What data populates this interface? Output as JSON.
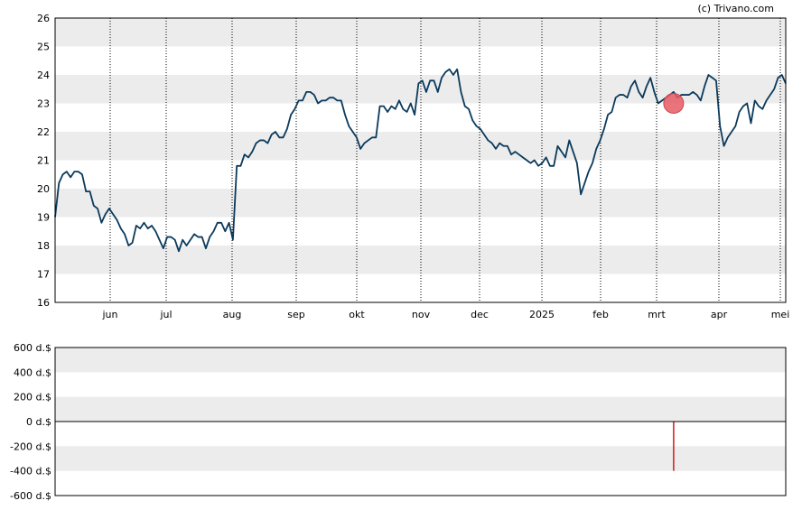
{
  "credit": "(c) Trivano.com",
  "colors": {
    "line": "#0b3a5c",
    "band": "#ececec",
    "marker": "#e85a64",
    "transaction": "#d62728",
    "axis": "#000000",
    "gridline": "#000000"
  },
  "chart_data": [
    {
      "type": "line",
      "title": "",
      "ylim": [
        16,
        26
      ],
      "y_ticks": [
        "16",
        "17",
        "18",
        "19",
        "20",
        "21",
        "22",
        "23",
        "24",
        "25",
        "26"
      ],
      "x_tick_labels": [
        "jun",
        "jul",
        "aug",
        "sep",
        "okt",
        "nov",
        "dec",
        "2025",
        "feb",
        "mrt",
        "apr",
        "mei"
      ],
      "alternating_bands": true,
      "vertical_gridlines": "dotted",
      "series": [
        {
          "values": [
            19.0,
            20.2,
            20.5,
            20.6,
            20.4,
            20.6,
            20.6,
            20.5,
            19.9,
            19.9,
            19.4,
            19.3,
            18.8,
            19.1,
            19.3,
            19.1,
            18.9,
            18.6,
            18.4,
            18.0,
            18.1,
            18.7,
            18.6,
            18.8,
            18.6,
            18.7,
            18.5,
            18.2,
            17.9,
            18.3,
            18.3,
            18.2,
            17.8,
            18.2,
            18.0,
            18.2,
            18.4,
            18.3,
            18.3,
            17.9,
            18.3,
            18.5,
            18.8,
            18.8,
            18.5,
            18.8,
            18.2,
            20.8,
            20.8,
            21.2,
            21.1,
            21.3,
            21.6,
            21.7,
            21.7,
            21.6,
            21.9,
            22.0,
            21.8,
            21.8,
            22.1,
            22.6,
            22.8,
            23.1,
            23.1,
            23.4,
            23.4,
            23.3,
            23.0,
            23.1,
            23.1,
            23.2,
            23.2,
            23.1,
            23.1,
            22.6,
            22.2,
            22.0,
            21.8,
            21.4,
            21.6,
            21.7,
            21.8,
            21.8,
            22.9,
            22.9,
            22.7,
            22.9,
            22.8,
            23.1,
            22.8,
            22.7,
            23.0,
            22.6,
            23.7,
            23.8,
            23.4,
            23.8,
            23.8,
            23.4,
            23.9,
            24.1,
            24.2,
            24.0,
            24.2,
            23.4,
            22.9,
            22.8,
            22.4,
            22.2,
            22.1,
            21.9,
            21.7,
            21.6,
            21.4,
            21.6,
            21.5,
            21.5,
            21.2,
            21.3,
            21.2,
            21.1,
            21.0,
            20.9,
            21.0,
            20.8,
            20.9,
            21.1,
            20.8,
            20.8,
            21.5,
            21.3,
            21.1,
            21.7,
            21.3,
            20.9,
            19.8,
            20.2,
            20.6,
            20.9,
            21.4,
            21.7,
            22.1,
            22.6,
            22.7,
            23.2,
            23.3,
            23.3,
            23.2,
            23.6,
            23.8,
            23.4,
            23.2,
            23.6,
            23.9,
            23.4,
            23.0,
            23.1,
            23.2,
            23.3,
            23.4,
            23.2,
            23.3,
            23.3,
            23.3,
            23.4,
            23.3,
            23.1,
            23.6,
            24.0,
            23.9,
            23.8,
            22.2,
            21.5,
            21.8,
            22.0,
            22.2,
            22.7,
            22.9,
            23.0,
            22.3,
            23.1,
            22.9,
            22.8,
            23.1,
            23.3,
            23.5,
            23.9,
            24.0,
            23.7
          ],
          "x_index_range": [
            0,
            188
          ]
        }
      ],
      "marker": {
        "series_index": 160,
        "value": 23.0
      }
    },
    {
      "type": "bar",
      "title": "",
      "ylim": [
        -600,
        600
      ],
      "y_ticks": [
        "-600 d.$",
        "-400 d.$",
        "-200 d.$",
        "0 d.$",
        "200 d.$",
        "400 d.$",
        "600 d.$"
      ],
      "alternating_bands": true,
      "bars": [
        {
          "x_index": 160,
          "value": -400
        }
      ]
    }
  ]
}
